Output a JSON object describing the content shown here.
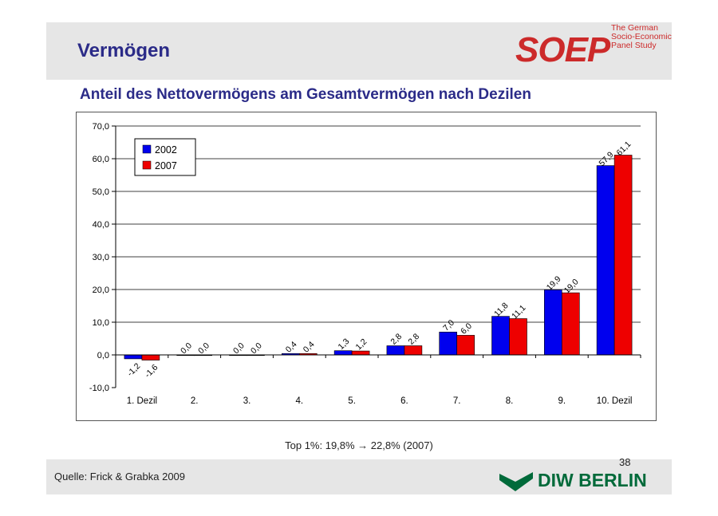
{
  "slide": {
    "title": "Vermögen",
    "logo_text": "SOEP",
    "logo_tagline": "The German Socio-Economic Panel Study",
    "footnote": "Top 1%: 19,8% → 22,8% (2007)",
    "source": "Quelle: Frick & Grabka 2009",
    "page_number": "38",
    "footer_logo": "DIW BERLIN"
  },
  "chart_data": {
    "type": "bar",
    "title": "Anteil des Nettovermögens am Gesamtvermögen nach Dezilen",
    "categories": [
      "1. Dezil",
      "2.",
      "3.",
      "4.",
      "5.",
      "6.",
      "7.",
      "8.",
      "9.",
      "10. Dezil"
    ],
    "series": [
      {
        "name": "2002",
        "color": "#0000ee",
        "values": [
          -1.2,
          0.0,
          0.0,
          0.4,
          1.3,
          2.8,
          7.0,
          11.8,
          19.9,
          57.9
        ],
        "labels": [
          "-1,2",
          "0,0",
          "0,0",
          "0,4",
          "1,3",
          "2,8",
          "7,0",
          "11,8",
          "19,9",
          "57,9"
        ]
      },
      {
        "name": "2007",
        "color": "#ee0000",
        "values": [
          -1.6,
          0.0,
          0.0,
          0.4,
          1.2,
          2.8,
          6.0,
          11.1,
          19.0,
          61.1
        ],
        "labels": [
          "-1,6",
          "0,0",
          "0,0",
          "0,4",
          "1,2",
          "2,8",
          "6,0",
          "11,1",
          "19,0",
          "61,1"
        ]
      }
    ],
    "ylim": [
      -10,
      70
    ],
    "yticks": [
      -10,
      0,
      10,
      20,
      30,
      40,
      50,
      60,
      70
    ],
    "ytick_labels": [
      "-10,0",
      "0,0",
      "10,0",
      "20,0",
      "30,0",
      "40,0",
      "50,0",
      "60,0",
      "70,0"
    ],
    "grid": true,
    "legend_position": "top-left"
  }
}
